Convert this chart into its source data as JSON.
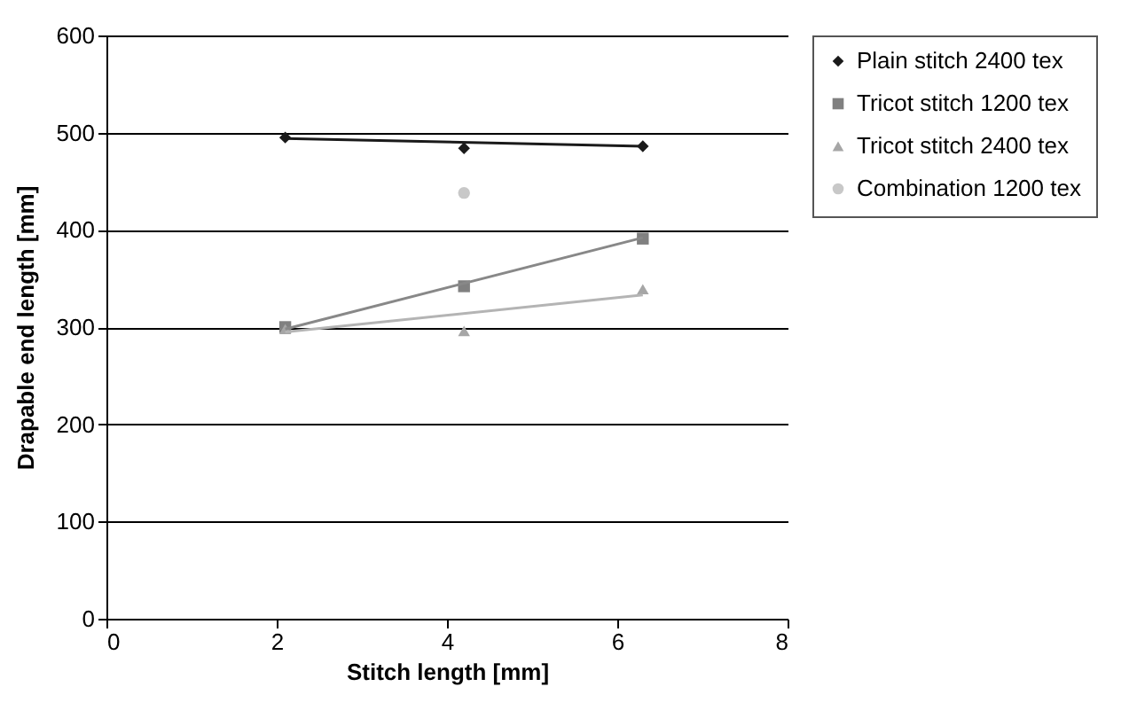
{
  "chart_data": {
    "type": "scatter",
    "xlabel": "Stitch length [mm]",
    "ylabel": "Drapable end length [mm]",
    "xlim": [
      0,
      8
    ],
    "xticks": [
      0,
      2,
      4,
      6,
      8
    ],
    "ylim": [
      0,
      600
    ],
    "yticks": [
      0,
      100,
      200,
      300,
      400,
      500,
      600
    ],
    "grid": "y",
    "legend": "right",
    "series": [
      {
        "name": "Plain stitch 2400 tex",
        "color": "#1a1a1a",
        "marker": "diamond",
        "x": [
          2.1,
          4.2,
          6.3
        ],
        "values": [
          495,
          484,
          486
        ]
      },
      {
        "name": "Tricot stitch 1200 tex",
        "color": "#808080",
        "marker": "square",
        "x": [
          2.1,
          4.2,
          6.3
        ],
        "values": [
          300,
          342,
          391
        ]
      },
      {
        "name": "Tricot stitch 2400 tex",
        "color": "#a6a6a6",
        "marker": "triangle",
        "x": [
          2.1,
          4.2,
          6.3
        ],
        "values": [
          298,
          296,
          339
        ]
      },
      {
        "name": "Combination 1200 tex",
        "color": "#c8c8c8",
        "marker": "circle",
        "x": [
          4.2
        ],
        "values": [
          438
        ]
      },
      {
        "type": "line",
        "color": "#1a1a1a",
        "marker": "none",
        "x": [
          2.1,
          6.3
        ],
        "values": [
          494,
          486
        ]
      },
      {
        "type": "line",
        "color": "#888888",
        "marker": "none",
        "x": [
          2.1,
          6.3
        ],
        "values": [
          298,
          392
        ]
      },
      {
        "type": "line",
        "color": "#b4b4b4",
        "marker": "none",
        "x": [
          2.1,
          6.3
        ],
        "values": [
          295,
          333
        ]
      }
    ]
  }
}
